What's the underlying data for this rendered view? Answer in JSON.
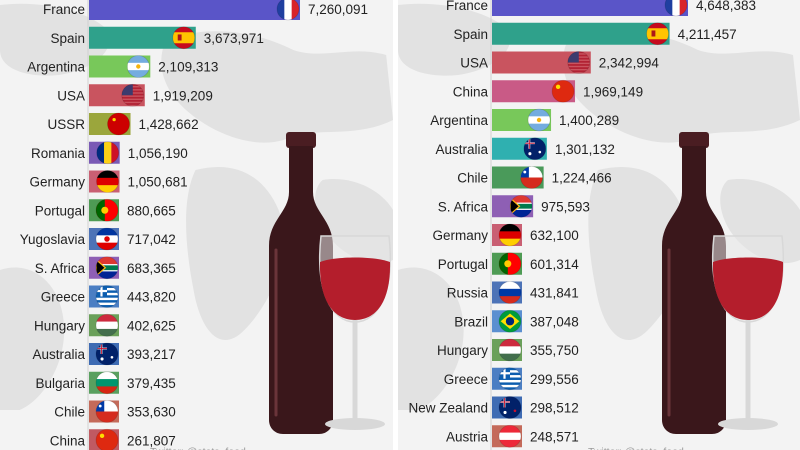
{
  "colors": {
    "background": "#f3f3f3",
    "map_land": "#e2e2e2",
    "bottle": "#3a171b",
    "wine": "#b41e2c",
    "glass": "#d8d8d8"
  },
  "illustration": "wine-bottle-and-glass-icon",
  "chart_data": [
    {
      "type": "bar",
      "orientation": "horizontal",
      "title": "",
      "xlabel": "",
      "ylabel": "",
      "categories": [
        "France",
        "Spain",
        "Argentina",
        "USA",
        "USSR",
        "Romania",
        "Germany",
        "Portugal",
        "Yugoslavia",
        "S. Africa",
        "Greece",
        "Hungary",
        "Australia",
        "Bulgaria",
        "Chile",
        "China"
      ],
      "values": [
        7260091,
        3673971,
        2109313,
        1919209,
        1428662,
        1056190,
        1050681,
        880665,
        717042,
        683365,
        443820,
        402625,
        393217,
        379435,
        353630,
        261807
      ],
      "value_labels": [
        "7,260,091",
        "3,673,971",
        "2,109,313",
        "1,919,209",
        "1,428,662",
        "1,056,190",
        "1,050,681",
        "880,665",
        "717,042",
        "683,365",
        "443,820",
        "402,625",
        "393,217",
        "379,435",
        "353,630",
        "261,807"
      ],
      "bar_colors": [
        "#5a55c8",
        "#2fa18b",
        "#78c85a",
        "#c9545f",
        "#9ba63c",
        "#7a5ab5",
        "#c95f73",
        "#4e9b54",
        "#4d73b7",
        "#8e5fb4",
        "#4b7ec3",
        "#6aa05a",
        "#3e6bb3",
        "#59a05f",
        "#c46a5a",
        "#c05a62"
      ],
      "flags": [
        "flag-france-icon",
        "flag-spain-icon",
        "flag-argentina-icon",
        "flag-usa-icon",
        "flag-ussr-icon",
        "flag-romania-icon",
        "flag-germany-icon",
        "flag-portugal-icon",
        "flag-yugoslavia-icon",
        "flag-south-africa-icon",
        "flag-greece-icon",
        "flag-hungary-icon",
        "flag-australia-icon",
        "flag-bulgaria-icon",
        "flag-chile-icon",
        "flag-china-icon"
      ],
      "footer": "Twitter: @stats_feed"
    },
    {
      "type": "bar",
      "orientation": "horizontal",
      "title": "",
      "xlabel": "",
      "ylabel": "",
      "categories": [
        "France",
        "Spain",
        "USA",
        "China",
        "Argentina",
        "Australia",
        "Chile",
        "S. Africa",
        "Germany",
        "Portugal",
        "Russia",
        "Brazil",
        "Hungary",
        "Greece",
        "New Zealand",
        "Austria"
      ],
      "values": [
        4648383,
        4211457,
        2342994,
        1969149,
        1400289,
        1301132,
        1224466,
        975593,
        632100,
        601314,
        431841,
        387048,
        355750,
        299556,
        298512,
        248571
      ],
      "value_labels": [
        "4,648,383",
        "4,211,457",
        "2,342,994",
        "1,969,149",
        "1,400,289",
        "1,301,132",
        "1,224,466",
        "975,593",
        "632,100",
        "601,314",
        "431,841",
        "387,048",
        "355,750",
        "299,556",
        "298,512",
        "248,571"
      ],
      "bar_colors": [
        "#5a55c8",
        "#2fa18b",
        "#c9545f",
        "#c95a86",
        "#78c85a",
        "#2fb0b0",
        "#4a9a5a",
        "#8e5fb4",
        "#c95f73",
        "#4e9b54",
        "#4d73b7",
        "#5a8fd0",
        "#6aa05a",
        "#4b7ec3",
        "#3e6bb3",
        "#c46a5a"
      ],
      "flags": [
        "flag-france-icon",
        "flag-spain-icon",
        "flag-usa-icon",
        "flag-china-icon",
        "flag-argentina-icon",
        "flag-australia-icon",
        "flag-chile-icon",
        "flag-south-africa-icon",
        "flag-germany-icon",
        "flag-portugal-icon",
        "flag-russia-icon",
        "flag-brazil-icon",
        "flag-hungary-icon",
        "flag-greece-icon",
        "flag-new-zealand-icon",
        "flag-austria-icon"
      ],
      "footer": "Twitter: @stats_feed"
    }
  ]
}
